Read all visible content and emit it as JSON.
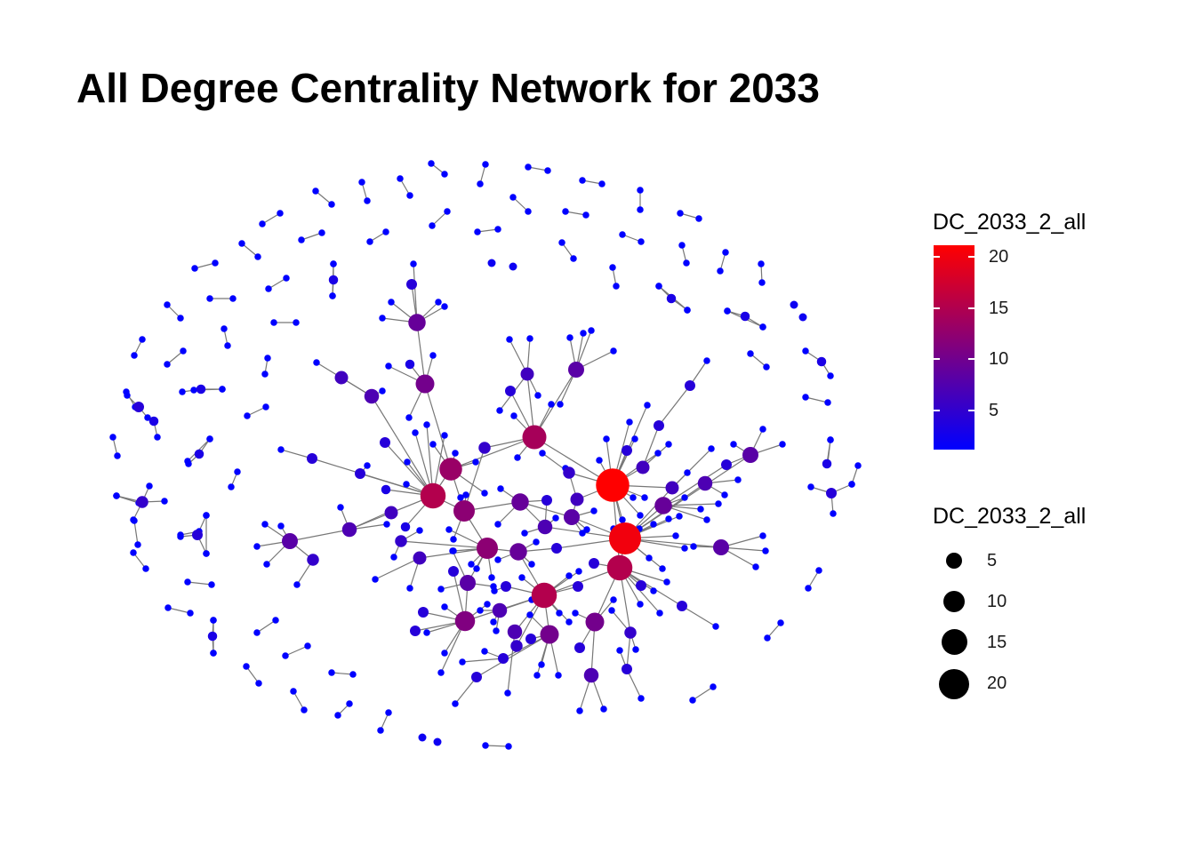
{
  "title": "All Degree Centrality Network for 2033",
  "colors": {
    "low": "#0000FF",
    "high": "#FF0000",
    "edge": "#808080",
    "background": "#FFFFFF"
  },
  "legend_color": {
    "title": "DC_2033_2_all",
    "min": 1,
    "max": 21,
    "ticks": [
      "5",
      "10",
      "15",
      "20"
    ]
  },
  "legend_size": {
    "title": "DC_2033_2_all",
    "entries": [
      "5",
      "10",
      "15",
      "20"
    ]
  }
}
